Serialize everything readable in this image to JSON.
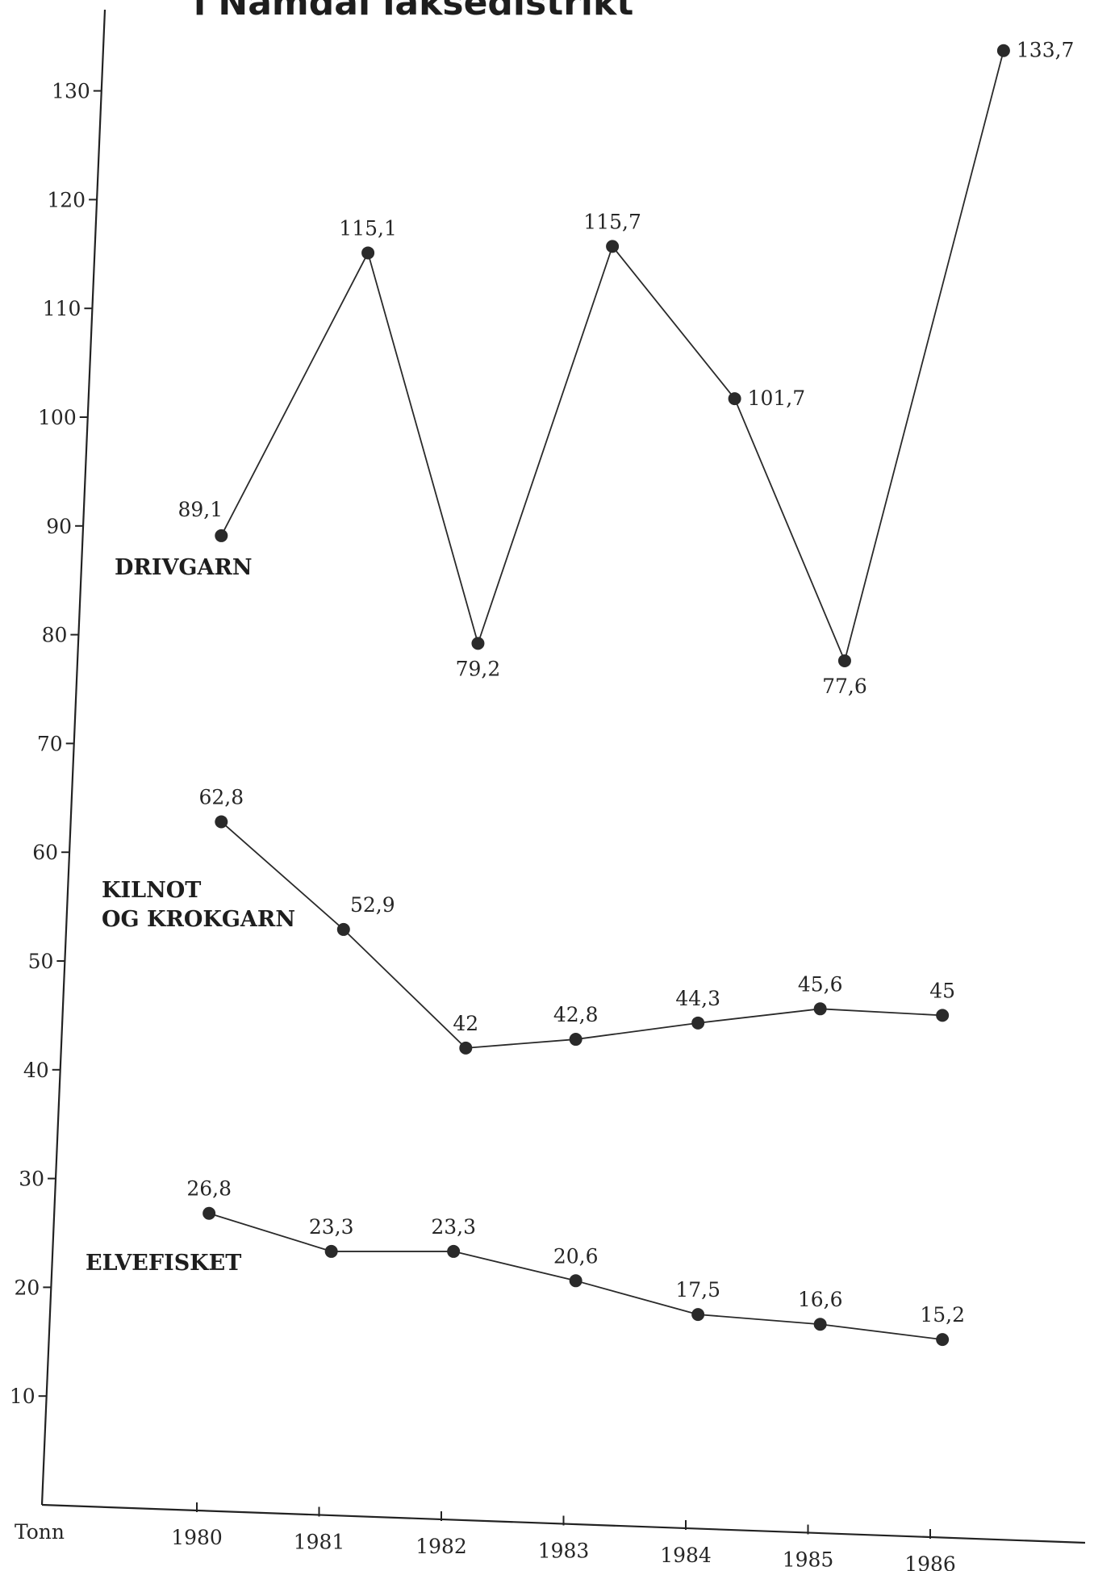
{
  "chart_data": {
    "type": "line",
    "title": "i Namdal laksedistrikt",
    "ylabel": "Tonn",
    "x": [
      "1980",
      "1981",
      "1982",
      "1983",
      "1984",
      "1985",
      "1986"
    ],
    "y_ticks": [
      "10",
      "20",
      "30",
      "40",
      "50",
      "60",
      "70",
      "80",
      "90",
      "100",
      "110",
      "120",
      "130"
    ],
    "ylim": [
      0,
      138
    ],
    "grid": false,
    "series": [
      {
        "name": "DRIVGARN",
        "x": [
          1980.2,
          1981.4,
          1982.3,
          1983.4,
          1984.4,
          1985.3,
          1986.6
        ],
        "values": [
          89.1,
          115.1,
          79.2,
          115.7,
          101.7,
          77.6,
          133.7
        ],
        "labels": [
          "89,1",
          "115,1",
          "79,2",
          "115,7",
          "101,7",
          "77,6",
          "133,7"
        ]
      },
      {
        "name": "KILNOT OG KROKGARN",
        "x": [
          1980.2,
          1981.2,
          1982.2,
          1983.1,
          1984.1,
          1985.1,
          1986.1
        ],
        "values": [
          62.8,
          52.9,
          42,
          42.8,
          44.3,
          45.6,
          45
        ],
        "labels": [
          "62,8",
          "52,9",
          "42",
          "42,8",
          "44,3",
          "45,6",
          "45"
        ]
      },
      {
        "name": "ELVEFISKET",
        "x": [
          1980.1,
          1981.1,
          1982.1,
          1983.1,
          1984.1,
          1985.1,
          1986.1
        ],
        "values": [
          26.8,
          23.3,
          23.3,
          20.6,
          17.5,
          16.6,
          15.2
        ],
        "labels": [
          "26,8",
          "23,3",
          "23,3",
          "20,6",
          "17,5",
          "16,6",
          "15,2"
        ]
      }
    ]
  }
}
